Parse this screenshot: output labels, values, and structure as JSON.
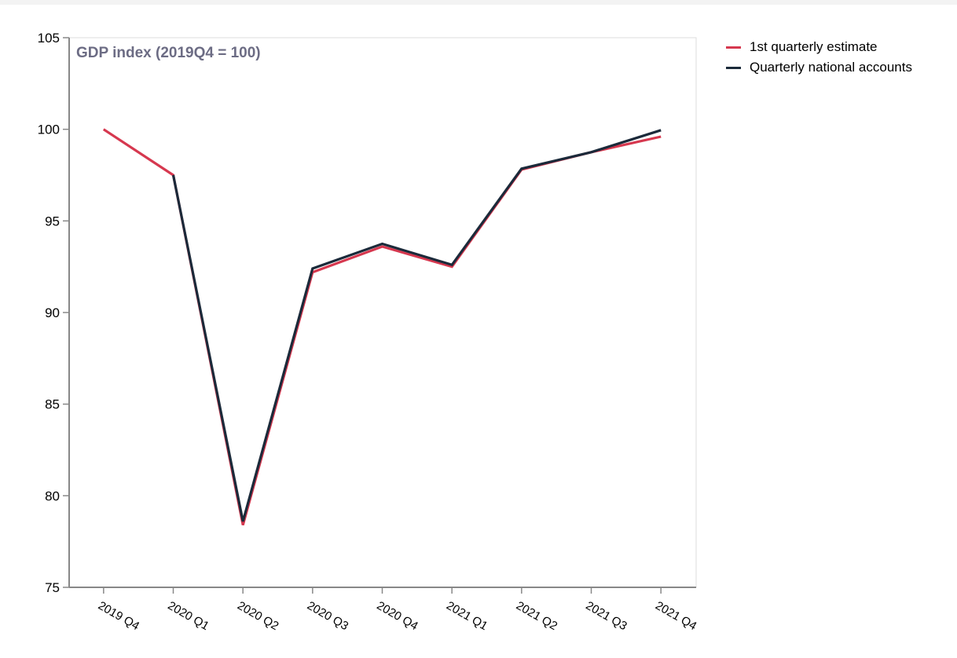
{
  "chart_data": {
    "type": "line",
    "title": "GDP index (2019Q4 = 100)",
    "xlabel": "",
    "ylabel": "",
    "ylim": [
      75,
      105
    ],
    "yticks": [
      75,
      80,
      85,
      90,
      95,
      100,
      105
    ],
    "grid": false,
    "legend_position": "right",
    "categories": [
      "2019 Q4",
      "2020 Q1",
      "2020 Q2",
      "2020 Q3",
      "2020 Q4",
      "2021 Q1",
      "2021 Q2",
      "2021 Q3",
      "2021 Q4"
    ],
    "series": [
      {
        "name": "1st quarterly estimate",
        "color": "#d6384f",
        "values": [
          100.0,
          97.5,
          78.4,
          92.2,
          93.6,
          92.5,
          97.8,
          98.75,
          99.6
        ]
      },
      {
        "name": "Quarterly national accounts",
        "color": "#1b2a3a",
        "values": [
          null,
          97.5,
          78.6,
          92.4,
          93.75,
          92.6,
          97.85,
          98.75,
          99.95
        ]
      }
    ]
  },
  "legend": {
    "items": [
      {
        "label": "1st quarterly estimate",
        "color": "#d6384f"
      },
      {
        "label": "Quarterly national accounts",
        "color": "#1b2a3a"
      }
    ]
  }
}
